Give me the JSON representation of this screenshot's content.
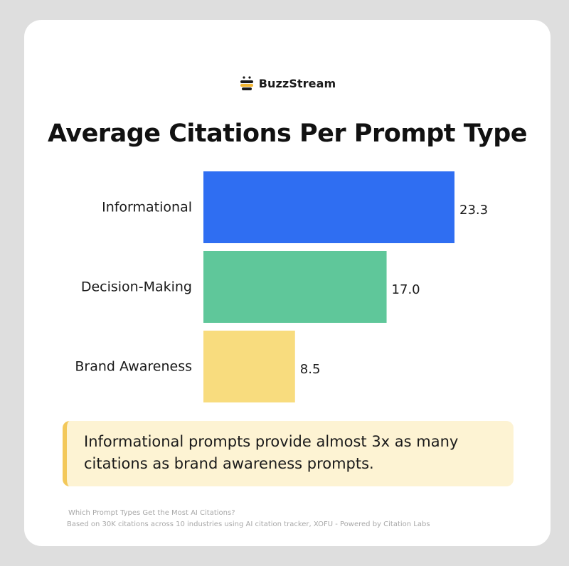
{
  "brand": {
    "name": "BuzzStream",
    "icon": "bee-icon"
  },
  "title": "Average Citations Per Prompt Type",
  "callout": {
    "text": "Informational prompts provide almost 3x as many citations as brand awareness prompts."
  },
  "source": {
    "line1": "Which Prompt Types Get the Most AI Citations?",
    "line2": "Based on 30K citations across 10 industries using AI citation tracker, XOFU - Powered by Citation Labs"
  },
  "colors": {
    "card_bg": "#ffffff",
    "page_bg": "#dedede",
    "callout_bg": "#fdf3d3",
    "callout_accent": "#f3c85a"
  },
  "chart_data": {
    "type": "bar",
    "orientation": "horizontal",
    "title": "Average Citations Per Prompt Type",
    "categories": [
      "Informational",
      "Decision-Making",
      "Brand Awareness"
    ],
    "values": [
      23.3,
      17.0,
      8.5
    ],
    "value_labels": [
      "23.3",
      "17.0",
      "8.5"
    ],
    "colors": [
      "#2f6ef2",
      "#5fc79a",
      "#f8dc7e"
    ],
    "xlim": [
      0,
      23.3
    ],
    "grid": false,
    "legend": "none"
  }
}
